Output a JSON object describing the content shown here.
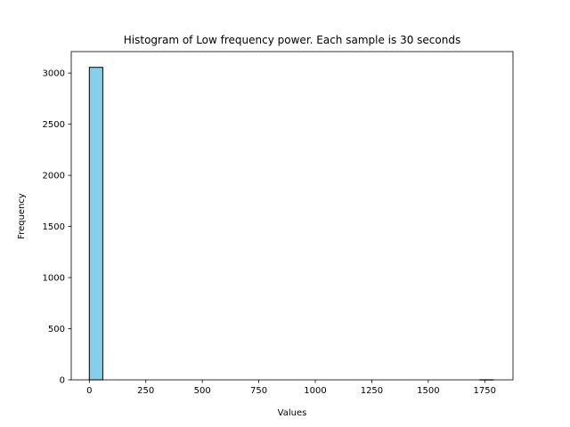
{
  "chart_data": {
    "type": "bar",
    "title": "Histogram of Low frequency power. Each sample is 30 seconds",
    "xlabel": "Values",
    "ylabel": "Frequency",
    "xlim": [
      -80,
      1875
    ],
    "ylim": [
      0,
      3210
    ],
    "xticks": [
      0,
      250,
      500,
      750,
      1000,
      1250,
      1500,
      1750
    ],
    "yticks": [
      0,
      500,
      1000,
      1500,
      2000,
      2500,
      3000
    ],
    "bin_width": 59.6,
    "bins": [
      {
        "x0": 0,
        "count": 3056
      },
      {
        "x0": 59.6,
        "count": 0
      },
      {
        "x0": 119.2,
        "count": 0
      },
      {
        "x0": 178.8,
        "count": 0
      },
      {
        "x0": 238.4,
        "count": 0
      },
      {
        "x0": 298.0,
        "count": 0
      },
      {
        "x0": 357.6,
        "count": 0
      },
      {
        "x0": 417.2,
        "count": 0
      },
      {
        "x0": 476.8,
        "count": 0
      },
      {
        "x0": 536.4,
        "count": 0
      },
      {
        "x0": 596.0,
        "count": 0
      },
      {
        "x0": 655.6,
        "count": 0
      },
      {
        "x0": 715.2,
        "count": 0
      },
      {
        "x0": 774.8,
        "count": 0
      },
      {
        "x0": 834.4,
        "count": 0
      },
      {
        "x0": 894.0,
        "count": 0
      },
      {
        "x0": 953.6,
        "count": 0
      },
      {
        "x0": 1013.2,
        "count": 0
      },
      {
        "x0": 1072.8,
        "count": 0
      },
      {
        "x0": 1132.4,
        "count": 0
      },
      {
        "x0": 1192.0,
        "count": 0
      },
      {
        "x0": 1251.6,
        "count": 0
      },
      {
        "x0": 1311.2,
        "count": 0
      },
      {
        "x0": 1370.8,
        "count": 0
      },
      {
        "x0": 1430.4,
        "count": 0
      },
      {
        "x0": 1490.0,
        "count": 0
      },
      {
        "x0": 1549.6,
        "count": 0
      },
      {
        "x0": 1609.2,
        "count": 0
      },
      {
        "x0": 1668.8,
        "count": 0
      },
      {
        "x0": 1728.4,
        "count": 1
      }
    ],
    "bar_color": "#87ceeb",
    "edge_color": "#000000",
    "grid": false,
    "legend": "none"
  }
}
